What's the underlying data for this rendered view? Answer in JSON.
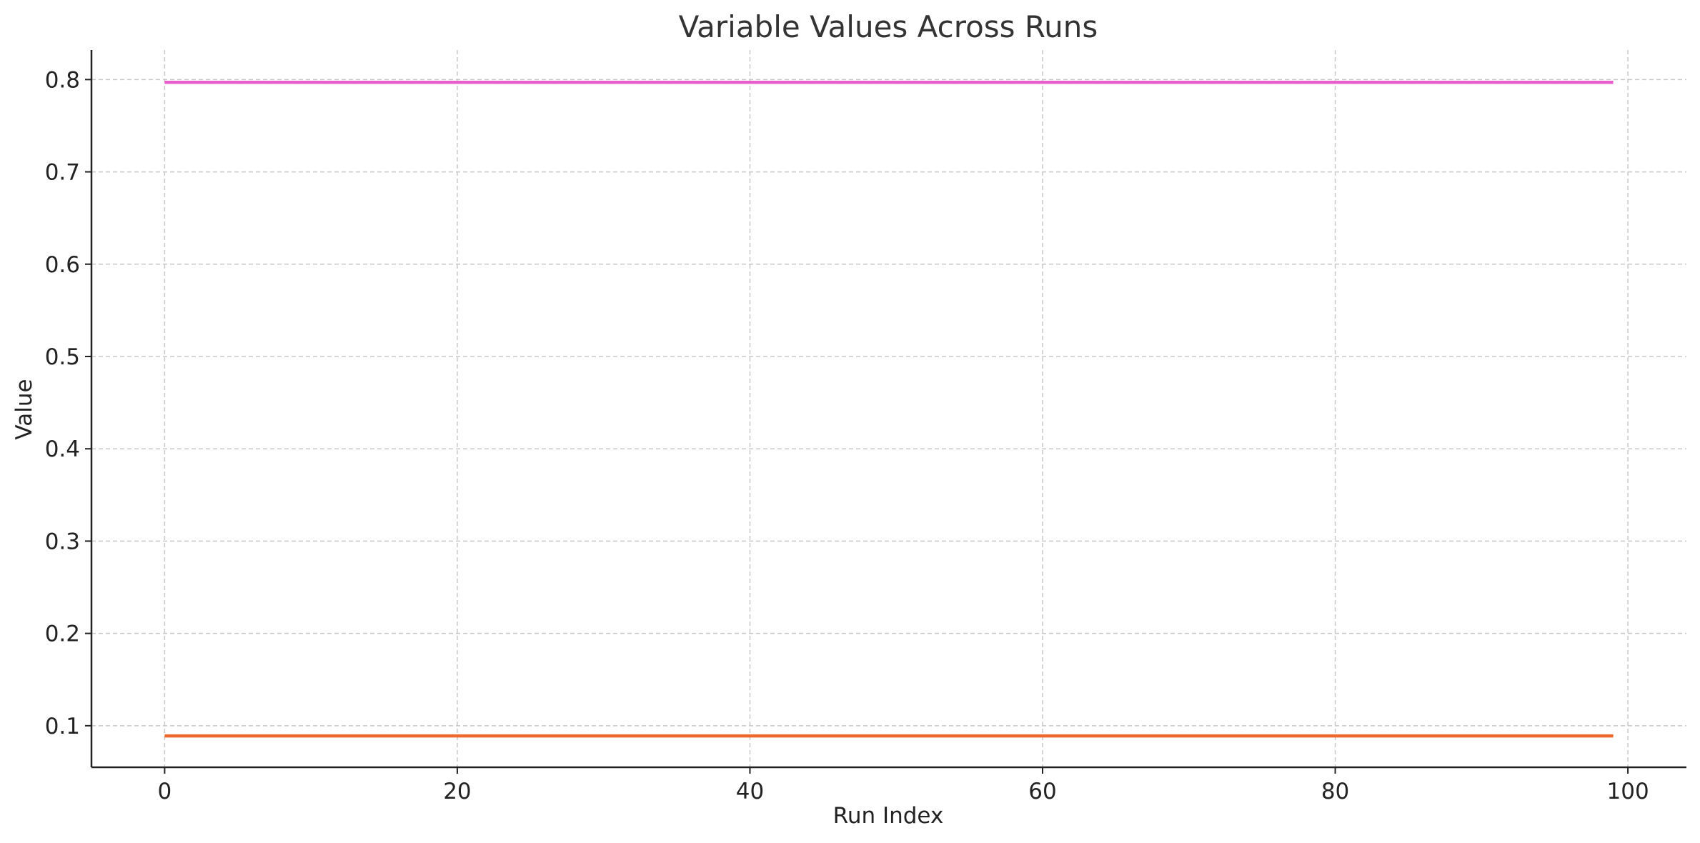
{
  "chart_data": {
    "type": "line",
    "title": "Variable Values Across Runs",
    "xlabel": "Run Index",
    "ylabel": "Value",
    "xlim": [
      -5,
      104
    ],
    "ylim": [
      0.055,
      0.832
    ],
    "xticks": [
      0,
      20,
      40,
      60,
      80,
      100
    ],
    "xtick_labels": [
      "0",
      "20",
      "40",
      "60",
      "80",
      "100"
    ],
    "yticks": [
      0.1,
      0.2,
      0.3,
      0.4,
      0.5,
      0.6,
      0.7,
      0.8
    ],
    "ytick_labels": [
      "0.1",
      "0.2",
      "0.3",
      "0.4",
      "0.5",
      "0.6",
      "0.7",
      "0.8"
    ],
    "grid": true,
    "series": [
      {
        "x": [
          0,
          99
        ],
        "values": [
          0.797,
          0.797
        ],
        "color": "#e85fcb"
      },
      {
        "x": [
          0,
          99
        ],
        "values": [
          0.089,
          0.089
        ],
        "color": "#ee6a2c"
      }
    ]
  }
}
